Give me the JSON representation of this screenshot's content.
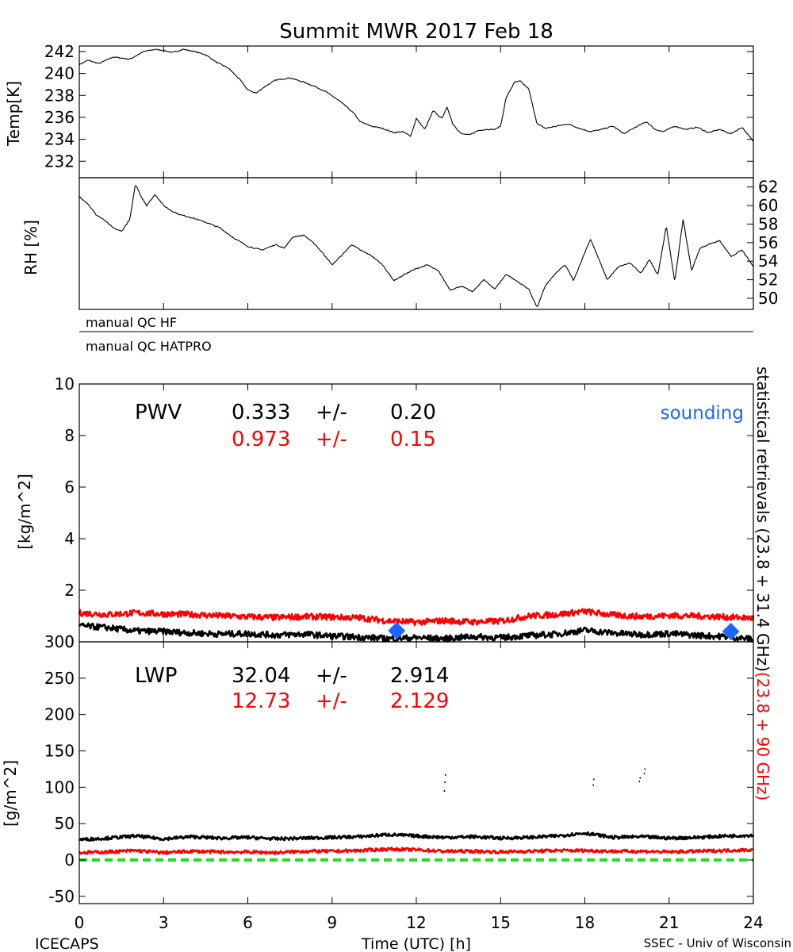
{
  "title": "Summit MWR 2017 Feb 18",
  "footer": {
    "left": "ICECAPS",
    "center": "Time (UTC) [h]",
    "right": "SSEC - Univ of Wisconsin"
  },
  "colors": {
    "black": "#000000",
    "red": "#ff0000",
    "blue": "#1a66ff",
    "green": "#22dd22"
  },
  "qc": {
    "hf_label": "manual QC HF",
    "hatpro_label": "manual QC HATPRO"
  },
  "side_label": {
    "black": "statistical retrievals (23.8 + 31.4 GHz)",
    "red": "(23.8 + 90 GHz)"
  },
  "pwv": {
    "label": "PWV",
    "black_mean": "0.333",
    "black_pm": "+/-",
    "black_sd": "0.20",
    "red_mean": "0.973",
    "red_pm": "+/-",
    "red_sd": "0.15",
    "sounding_label": "sounding"
  },
  "lwp": {
    "label": "LWP",
    "black_mean": "32.04",
    "black_pm": "+/-",
    "black_sd": "2.914",
    "red_mean": "12.73",
    "red_pm": "+/-",
    "red_sd": "2.129"
  },
  "chart_data": [
    {
      "type": "line",
      "panel": "temperature",
      "ylabel": "Temp[K]",
      "xlim": [
        0,
        24
      ],
      "ylim": [
        230.5,
        242.5
      ],
      "yticks": [
        232,
        234,
        236,
        238,
        240,
        242
      ],
      "series": [
        {
          "color": "#000000",
          "x": [
            0,
            0.3,
            0.7,
            1.2,
            1.8,
            2.3,
            2.7,
            3.0,
            3.3,
            3.7,
            4.1,
            4.5,
            4.9,
            5.3,
            5.7,
            6.0,
            6.3,
            6.6,
            7.0,
            7.5,
            8.0,
            8.4,
            8.8,
            9.2,
            9.5,
            9.8,
            10.0,
            10.4,
            10.8,
            11.2,
            11.5,
            11.8,
            12.0,
            12.3,
            12.6,
            12.9,
            13.1,
            13.3,
            13.6,
            13.9,
            14.2,
            14.5,
            14.8,
            15.0,
            15.2,
            15.5,
            15.7,
            16.0,
            16.3,
            16.6,
            17.0,
            17.4,
            17.8,
            18.2,
            18.6,
            19.0,
            19.4,
            19.8,
            20.2,
            20.5,
            20.8,
            21.2,
            21.6,
            22.0,
            22.4,
            22.8,
            23.2,
            23.6,
            24.0
          ],
          "y": [
            240.8,
            241.2,
            240.9,
            241.5,
            241.3,
            242.0,
            242.2,
            242.1,
            241.9,
            242.2,
            242.0,
            241.7,
            241.0,
            240.5,
            239.5,
            238.5,
            238.2,
            238.8,
            239.4,
            239.6,
            239.2,
            238.8,
            238.3,
            237.6,
            237.0,
            236.3,
            235.6,
            235.2,
            235.0,
            234.6,
            234.7,
            234.3,
            235.9,
            234.9,
            236.6,
            235.9,
            236.9,
            235.4,
            234.5,
            234.4,
            234.8,
            234.9,
            234.9,
            235.2,
            237.8,
            239.2,
            239.3,
            238.6,
            235.4,
            235.0,
            235.2,
            235.4,
            235.0,
            234.7,
            234.9,
            235.2,
            234.5,
            235.1,
            235.6,
            234.9,
            234.7,
            235.2,
            234.9,
            235.1,
            234.6,
            234.9,
            234.5,
            235.1,
            233.8
          ]
        }
      ]
    },
    {
      "type": "line",
      "panel": "relative_humidity",
      "ylabel": "RH [%]",
      "xlim": [
        0,
        24
      ],
      "ylim": [
        48.8,
        63.0
      ],
      "yticks": [
        50,
        52,
        54,
        56,
        58,
        60,
        62
      ],
      "series": [
        {
          "color": "#000000",
          "x": [
            0,
            0.3,
            0.6,
            0.9,
            1.2,
            1.5,
            1.8,
            2.0,
            2.2,
            2.4,
            2.7,
            3.0,
            3.3,
            3.6,
            4.0,
            4.5,
            5.0,
            5.5,
            6.0,
            6.5,
            7.0,
            7.3,
            7.6,
            8.0,
            8.4,
            8.8,
            9.0,
            9.4,
            9.7,
            10.0,
            10.4,
            10.8,
            11.2,
            11.6,
            12.0,
            12.4,
            12.8,
            13.2,
            13.6,
            14.0,
            14.4,
            14.8,
            15.2,
            15.6,
            16.0,
            16.3,
            16.6,
            17.0,
            17.3,
            17.6,
            17.9,
            18.2,
            18.5,
            18.8,
            19.2,
            19.6,
            20.0,
            20.3,
            20.6,
            20.9,
            21.2,
            21.5,
            21.8,
            22.1,
            22.4,
            22.8,
            23.2,
            23.6,
            24.0
          ],
          "y": [
            61.0,
            60.2,
            59.0,
            58.4,
            57.6,
            57.2,
            58.5,
            62.3,
            61.0,
            60.0,
            61.2,
            60.0,
            59.4,
            59.0,
            58.7,
            58.2,
            57.6,
            56.5,
            55.6,
            55.2,
            55.8,
            55.4,
            56.6,
            56.8,
            55.8,
            54.4,
            53.6,
            54.8,
            55.8,
            55.2,
            54.6,
            53.6,
            51.9,
            52.6,
            53.2,
            53.6,
            52.9,
            50.9,
            51.3,
            50.7,
            52.0,
            51.0,
            52.6,
            51.8,
            51.0,
            49.0,
            51.4,
            52.8,
            53.6,
            51.9,
            54.2,
            56.4,
            54.2,
            52.0,
            53.4,
            53.8,
            52.7,
            54.2,
            52.5,
            57.8,
            51.8,
            58.5,
            53.0,
            55.4,
            55.8,
            56.2,
            54.5,
            55.2,
            53.4
          ]
        }
      ]
    },
    {
      "type": "line",
      "panel": "PWV",
      "ylabel": "[kg/m^2]",
      "xlim": [
        0,
        24
      ],
      "ylim": [
        0,
        10
      ],
      "yticks": [
        0,
        2,
        4,
        6,
        8,
        10
      ],
      "series": [
        {
          "color": "#ff0000",
          "x": [
            0,
            1,
            2,
            3,
            4,
            5,
            6,
            7,
            8,
            9,
            10,
            11,
            12,
            13,
            14,
            15,
            16,
            17,
            18,
            19,
            20,
            21,
            22,
            23,
            24
          ],
          "y": [
            1.12,
            1.06,
            1.12,
            1.08,
            1.06,
            1.01,
            0.97,
            0.94,
            0.98,
            0.96,
            0.93,
            0.81,
            0.76,
            0.82,
            0.77,
            0.8,
            1.0,
            1.06,
            1.18,
            1.04,
            0.98,
            1.02,
            1.0,
            0.96,
            0.92
          ]
        },
        {
          "color": "#000000",
          "x": [
            0,
            1,
            2,
            3,
            4,
            5,
            6,
            7,
            8,
            9,
            10,
            11,
            12,
            13,
            14,
            15,
            16,
            17,
            18,
            19,
            20,
            21,
            22,
            23,
            24
          ],
          "y": [
            0.62,
            0.55,
            0.42,
            0.4,
            0.34,
            0.3,
            0.32,
            0.26,
            0.3,
            0.22,
            0.18,
            0.12,
            0.16,
            0.12,
            0.2,
            0.16,
            0.24,
            0.3,
            0.45,
            0.34,
            0.28,
            0.32,
            0.25,
            0.2,
            0.1
          ]
        },
        {
          "color": "#1a66ff",
          "marker": "diamond",
          "x": [
            11.3,
            23.2
          ],
          "y": [
            0.43,
            0.4
          ]
        }
      ]
    },
    {
      "type": "line",
      "panel": "LWP",
      "ylabel": "[g/m^2]",
      "xlabel": "Time (UTC) [h]",
      "xlim": [
        0,
        24
      ],
      "xticks": [
        0,
        3,
        6,
        9,
        12,
        15,
        18,
        21,
        24
      ],
      "ylim": [
        -60,
        300
      ],
      "yticks": [
        -50,
        0,
        50,
        100,
        150,
        200,
        250,
        300
      ],
      "series": [
        {
          "color": "#000000",
          "x": [
            0,
            1,
            2,
            3,
            4,
            5,
            6,
            7,
            8,
            9,
            10,
            11,
            12,
            13,
            14,
            15,
            16,
            17,
            18,
            19,
            20,
            21,
            22,
            23,
            24
          ],
          "y": [
            28,
            30,
            33,
            29,
            32,
            30,
            31,
            29,
            30,
            31,
            32,
            35,
            33,
            31,
            32,
            30,
            31,
            33,
            37,
            31,
            32,
            30,
            31,
            33,
            34
          ]
        },
        {
          "color": "#ff0000",
          "x": [
            0,
            1,
            2,
            3,
            4,
            5,
            6,
            7,
            8,
            9,
            10,
            11,
            12,
            13,
            14,
            15,
            16,
            17,
            18,
            19,
            20,
            21,
            22,
            23,
            24
          ],
          "y": [
            10,
            11,
            13,
            10,
            12,
            11,
            11,
            10,
            12,
            12,
            13,
            15,
            14,
            12,
            12,
            11,
            12,
            13,
            13,
            12,
            12,
            11,
            12,
            13,
            14
          ]
        },
        {
          "color": "#000000",
          "style": "scattered-dots",
          "x": [
            12.98,
            13.0,
            13.02,
            18.28,
            18.3,
            19.92,
            19.95,
            20.1,
            20.12
          ],
          "y": [
            96,
            108,
            118,
            104,
            112,
            109,
            114,
            120,
            126
          ]
        },
        {
          "color": "#22dd22",
          "style": "dashed",
          "x": [
            0,
            24
          ],
          "y": [
            0,
            0
          ]
        }
      ]
    }
  ]
}
